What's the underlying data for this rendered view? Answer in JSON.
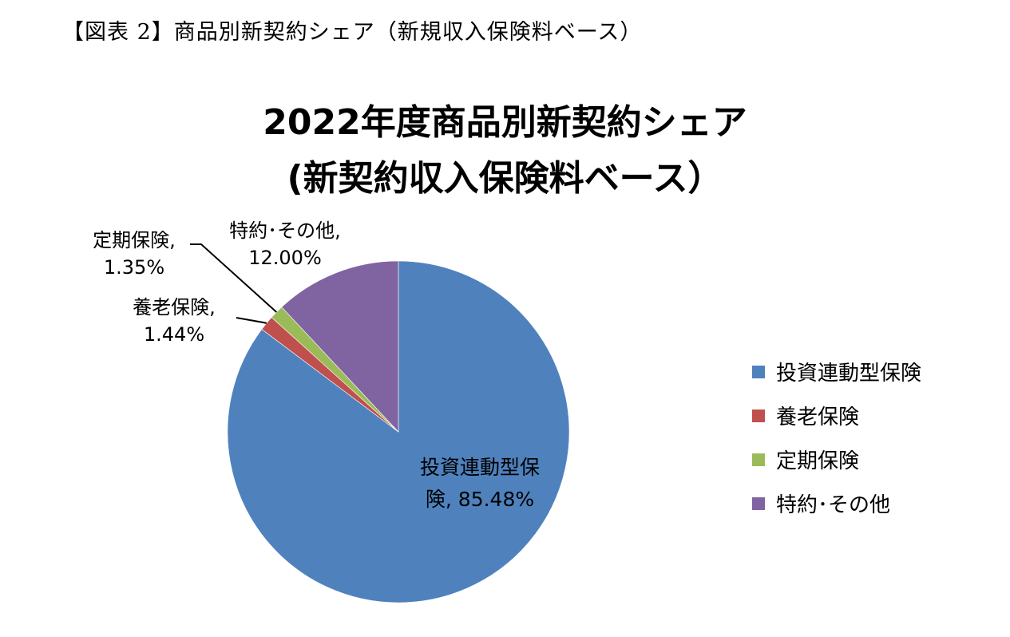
{
  "figure_caption": "【図表 2】商品別新契約シェア（新規収入保険料ベース）",
  "chart_data": {
    "type": "pie",
    "title_line1": "2022年度商品別新契約シェア",
    "title_line2": "(新契約収入保険料ベース）",
    "legend_position": "right",
    "slices": [
      {
        "name": "投資連動型保険",
        "value": 85.48,
        "color": "#4F81BD",
        "label_line1": "投資連動型保",
        "label_line2": "険, 85.48%"
      },
      {
        "name": "養老保険",
        "value": 1.44,
        "color": "#C0504D",
        "label_line1": "養老保険,",
        "label_line2": "1.44%"
      },
      {
        "name": "定期保険",
        "value": 1.35,
        "color": "#9BBB59",
        "label_line1": "定期保険,",
        "label_line2": "1.35%"
      },
      {
        "name": "特約・その他",
        "value": 12.0,
        "color": "#8064A2",
        "label_line1": "特約･その他,",
        "label_line2": "12.00%"
      }
    ],
    "legend": [
      "投資連動型保険",
      "養老保険",
      "定期保険",
      "特約･その他"
    ]
  }
}
